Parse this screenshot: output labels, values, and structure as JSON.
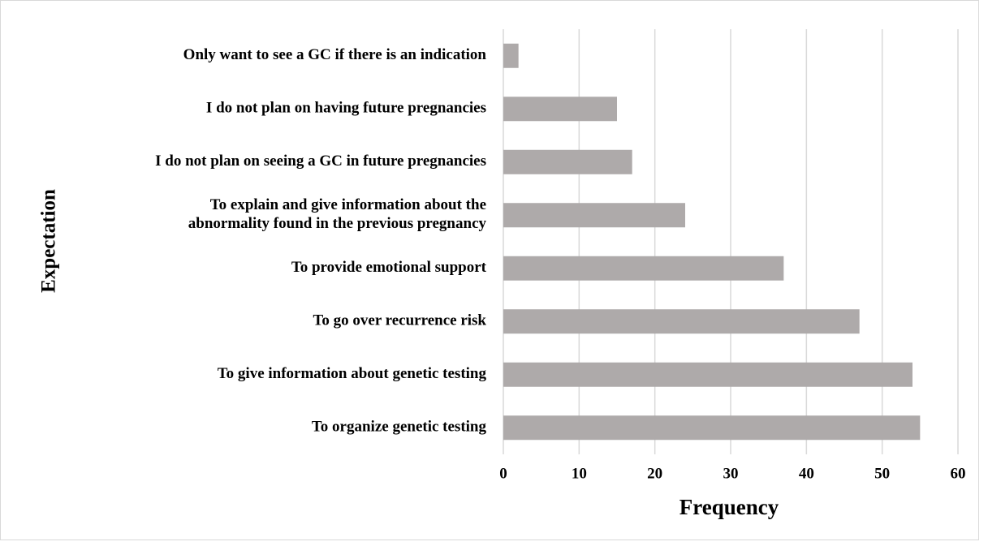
{
  "chart_data": {
    "type": "barh",
    "categories": [
      "Only want to see a GC if there is an indication",
      "I do not plan on having future pregnancies",
      "I do not plan on seeing a GC in future pregnancies",
      "To explain and give information about the\nabnormality found in the previous pregnancy",
      "To provide emotional support",
      "To go over recurrence risk",
      "To give information about genetic testing",
      "To organize genetic testing"
    ],
    "values": [
      2,
      15,
      17,
      24,
      37,
      47,
      54,
      55
    ],
    "color": "#aeaaaa",
    "xlabel": "Frequency",
    "ylabel": "Expectation",
    "xlim": [
      0,
      60
    ],
    "xticks": [
      0,
      10,
      20,
      30,
      40,
      50,
      60
    ],
    "grid": true
  }
}
